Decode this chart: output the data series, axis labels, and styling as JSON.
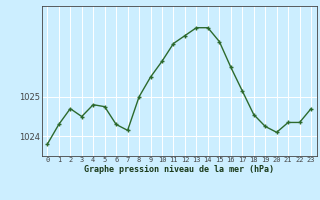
{
  "hours": [
    0,
    1,
    2,
    3,
    4,
    5,
    6,
    7,
    8,
    9,
    10,
    11,
    12,
    13,
    14,
    15,
    16,
    17,
    18,
    19,
    20,
    21,
    22,
    23
  ],
  "pressure": [
    1023.8,
    1024.3,
    1024.7,
    1024.5,
    1024.8,
    1024.75,
    1024.3,
    1024.15,
    1025.0,
    1025.5,
    1025.9,
    1026.35,
    1026.55,
    1026.75,
    1026.75,
    1026.4,
    1025.75,
    1025.15,
    1024.55,
    1024.25,
    1024.1,
    1024.35,
    1024.35,
    1024.7
  ],
  "line_color": "#2d6a2d",
  "marker_color": "#2d6a2d",
  "bg_color": "#cceeff",
  "grid_color": "#ffffff",
  "xlabel": "Graphe pression niveau de la mer (hPa)",
  "xlabel_color": "#1a3a1a",
  "tick_labels": [
    "0",
    "1",
    "2",
    "3",
    "4",
    "5",
    "6",
    "7",
    "8",
    "9",
    "10",
    "11",
    "12",
    "13",
    "14",
    "15",
    "16",
    "17",
    "18",
    "19",
    "20",
    "21",
    "22",
    "23"
  ],
  "ytick_labels": [
    "1024",
    "1025"
  ],
  "ylim": [
    1023.5,
    1027.3
  ],
  "yticks": [
    1024,
    1025
  ],
  "xlim": [
    -0.5,
    23.5
  ],
  "axis_color": "#444444"
}
